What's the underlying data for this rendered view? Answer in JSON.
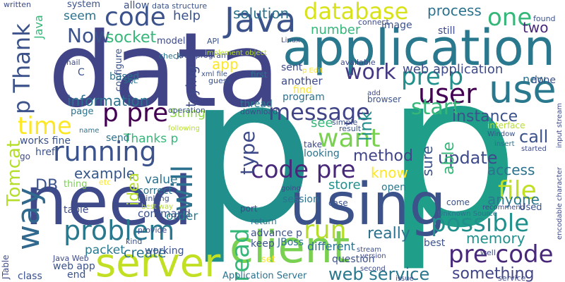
{
  "words": [
    "data",
    "p",
    "p",
    "application",
    "need",
    "using",
    "server",
    "client",
    "use",
    "Java",
    "database",
    "code",
    "one",
    "work",
    "pre p",
    "user",
    "message",
    "start",
    "want",
    "running",
    "time",
    "p pre",
    "information",
    "problem",
    "code pre",
    "run",
    "possible",
    "pre code",
    "something",
    "web service",
    "file",
    "way",
    "Tomcat",
    "p Thank",
    "will",
    "read",
    "Now",
    "socket",
    "DB",
    "example",
    "Thanks p",
    "idea",
    "value",
    "order",
    "create",
    "packet",
    "type",
    "link",
    "method",
    "update",
    "instance",
    "call",
    "access",
    "anyone",
    "memory",
    "really",
    "know",
    "store",
    "solution",
    "number",
    "process",
    "two",
    "web application",
    "new",
    "sure",
    "able",
    "see",
    "String",
    "trying",
    "app",
    "help",
    "seem",
    "Java",
    "open",
    "thing",
    "etc",
    "configure",
    "based",
    "model",
    "check",
    "allow",
    "system",
    "written",
    "data structure",
    "Java program",
    "xml file",
    "Linux",
    "API",
    "implement object",
    "SQL",
    "first",
    "guess",
    "sent",
    "another",
    "find",
    "program",
    "thread",
    "download",
    "operation",
    "following",
    "page",
    "send",
    "name",
    "works fine",
    "href",
    "go",
    "command",
    "thinking",
    "best way",
    "correct",
    "provide",
    "working",
    "kind",
    "table",
    "web app",
    "Java Web",
    "end",
    "class",
    "JTable",
    "session",
    "case",
    "going",
    "port",
    "advance p",
    "keep",
    "set",
    "different",
    "question",
    "version",
    "stream",
    "second",
    "Application Server",
    "JBoss",
    "return",
    "best",
    "Used",
    "recommend",
    "Unknown Source",
    "come",
    "done",
    "still",
    "found",
    "image",
    "connect",
    "available",
    "p Edit",
    "browser",
    "add",
    "simple",
    "result",
    "interface",
    "Window",
    "insert",
    "started",
    "input stream",
    "encodable character",
    "looking",
    "take",
    "issue",
    "service",
    "well",
    "mail",
    "C"
  ]
}
